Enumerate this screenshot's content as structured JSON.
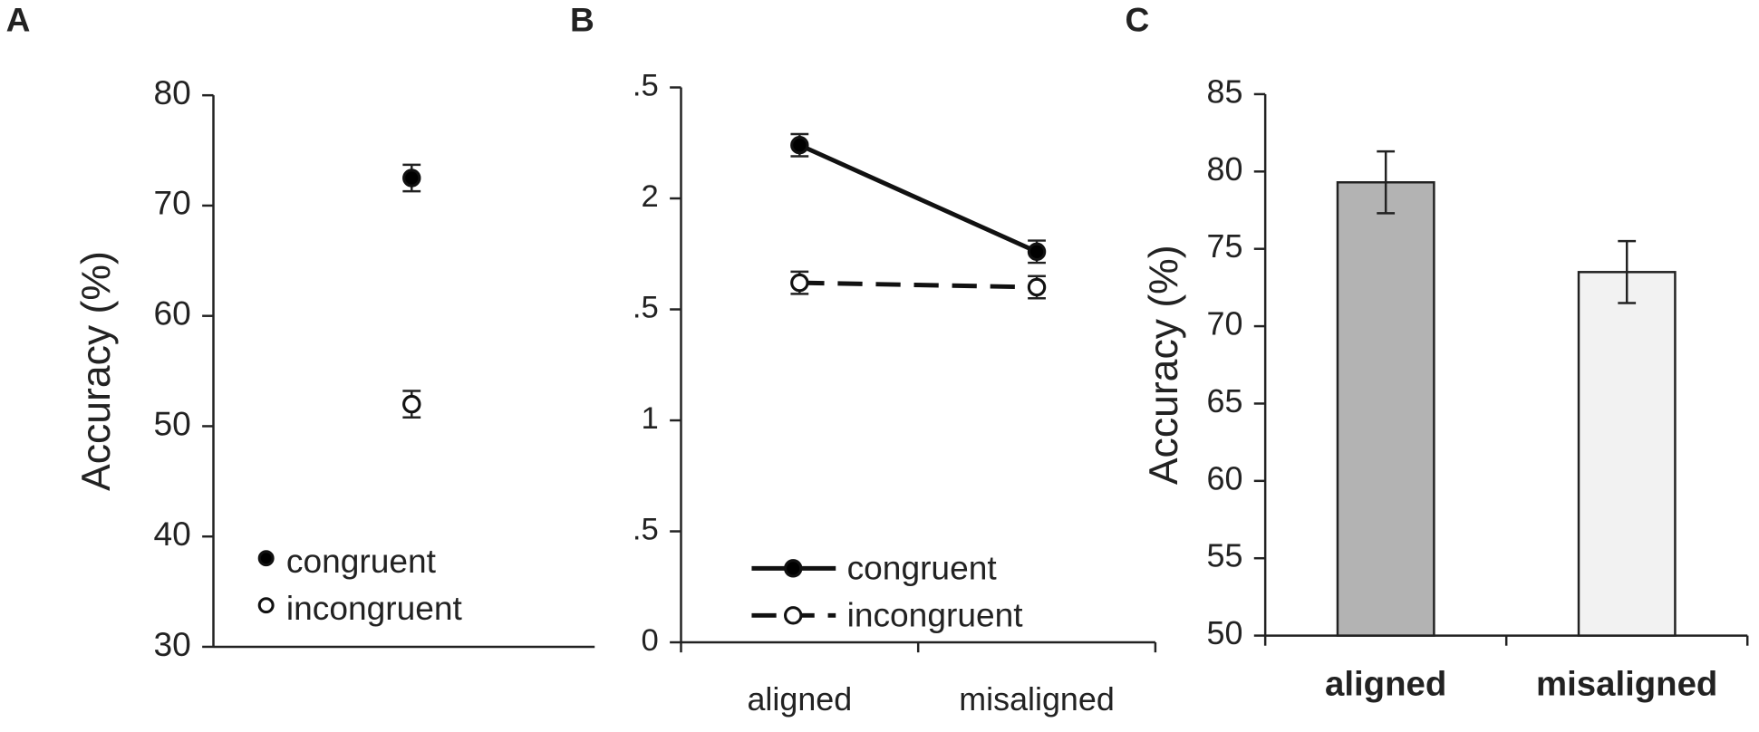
{
  "chart_data": [
    {
      "type": "scatter",
      "label": "A",
      "ylabel": "Accuracy (%)",
      "categories": [
        null
      ],
      "series": [
        {
          "name": "congruent",
          "color": "#000000",
          "values": [
            72.5
          ],
          "errors": [
            1.2
          ]
        },
        {
          "name": "incongruent",
          "color": "#ffffff",
          "values": [
            52
          ],
          "errors": [
            1.2
          ]
        }
      ],
      "ylim": [
        30,
        80
      ],
      "yticks": [
        30,
        40,
        50,
        60,
        70,
        80
      ],
      "legend": "lower left"
    },
    {
      "type": "line",
      "label": "B",
      "categories": [
        "aligned",
        "misaligned"
      ],
      "series": [
        {
          "name": "congruent",
          "color": "#000000",
          "linestyle": "solid",
          "values": [
            2.24,
            1.76
          ],
          "errors": [
            0.05,
            0.05
          ]
        },
        {
          "name": "incongruent",
          "color": "#ffffff",
          "linestyle": "dashed",
          "values": [
            1.62,
            1.6
          ],
          "errors": [
            0.05,
            0.05
          ]
        }
      ],
      "ylim": [
        0,
        2.5
      ],
      "yticks": [
        0,
        {
          "value": 0.5,
          "label": ".5"
        },
        1,
        {
          "value": 1.5,
          "label": ".5"
        },
        2,
        {
          "value": 2.5,
          "label": ".5"
        }
      ],
      "legend": "lower left"
    },
    {
      "type": "bar",
      "label": "C",
      "ylabel": "Accuracy (%)",
      "categories": [
        "aligned",
        "misaligned"
      ],
      "values": [
        79.3,
        73.5
      ],
      "errors": [
        2,
        2
      ],
      "colors": [
        "#b3b3b3",
        "#f2f2f2"
      ],
      "ylim": [
        50,
        85
      ],
      "yticks": [
        50,
        55,
        60,
        65,
        70,
        75,
        80,
        85
      ]
    }
  ]
}
